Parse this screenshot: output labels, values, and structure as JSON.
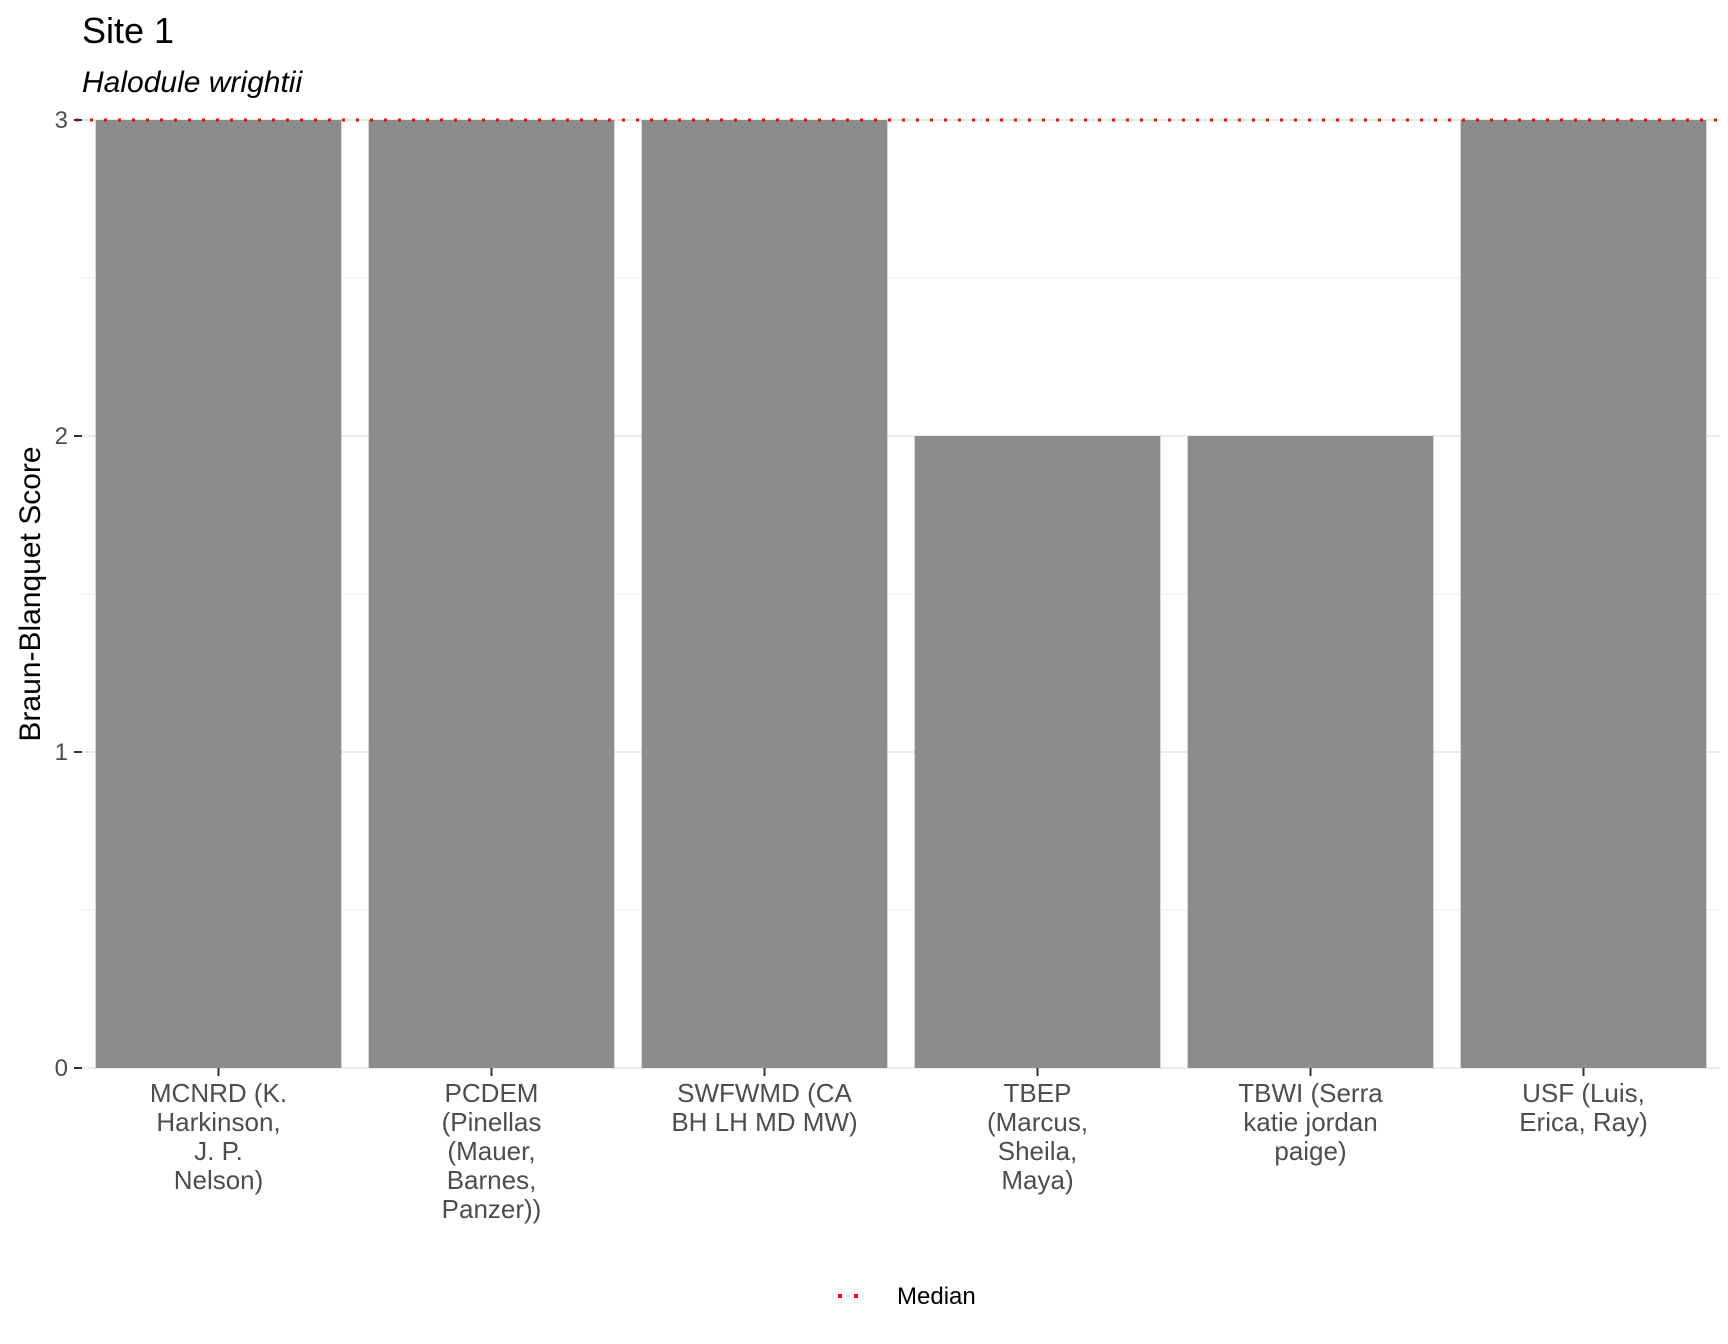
{
  "chart_data": {
    "type": "bar",
    "title": "Site 1",
    "subtitle": "Halodule wrightii",
    "xlabel": "",
    "ylabel": "Braun-Blanquet Score",
    "ylim": [
      0,
      3
    ],
    "yticks": [
      0,
      1,
      2,
      3
    ],
    "grid": true,
    "categories": [
      [
        "MCNRD (K.",
        "Harkinson,",
        "J. P.",
        "Nelson)"
      ],
      [
        "PCDEM",
        "(Pinellas",
        "(Mauer,",
        "Barnes,",
        "Panzer))"
      ],
      [
        "SWFWMD (CA",
        "BH LH MD MW)"
      ],
      [
        "TBEP",
        "(Marcus,",
        "Sheila,",
        "Maya)"
      ],
      [
        "TBWI (Serra",
        "katie jordan",
        "paige)"
      ],
      [
        "USF (Luis,",
        "Erica, Ray)"
      ]
    ],
    "values": [
      3,
      3,
      3,
      2,
      2,
      3
    ],
    "bar_color": "#8c8c8c",
    "median": {
      "label": "Median",
      "value": 3,
      "color": "#ff0000"
    },
    "legend_position": "bottom"
  }
}
